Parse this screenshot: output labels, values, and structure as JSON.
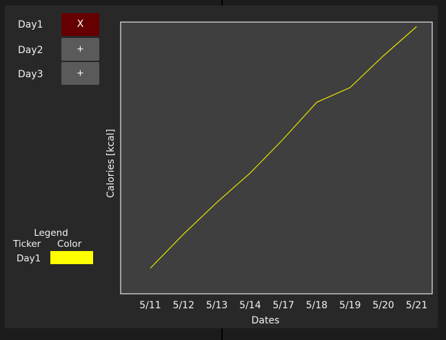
{
  "days": [
    {
      "label": "Day1",
      "button": "X",
      "state": "active"
    },
    {
      "label": "Day2",
      "button": "+",
      "state": "inactive"
    },
    {
      "label": "Day3",
      "button": "+",
      "state": "inactive"
    }
  ],
  "legend": {
    "title": "Legend",
    "col_ticker": "Ticker",
    "col_color": "Color",
    "entries": [
      {
        "ticker": "Day1",
        "color": "#ffff00"
      }
    ]
  },
  "colors": {
    "active_button": "#660000",
    "inactive_button": "#5a5a5a",
    "plot_background": "#3f3f3f",
    "series_line": "#e6e600"
  },
  "chart_data": {
    "type": "line",
    "title": "",
    "xlabel": "Dates",
    "ylabel": "Calories [kcal]",
    "x": [
      "5/11",
      "5/12",
      "5/13",
      "5/14",
      "5/17",
      "5/18",
      "5/19",
      "5/20",
      "5/21"
    ],
    "series": [
      {
        "name": "Day1",
        "color": "#e6e600",
        "values": [
          0.0,
          0.14,
          0.27,
          0.39,
          0.53,
          0.68,
          0.74,
          0.87,
          0.99
        ]
      }
    ],
    "ylim": [
      0,
      1
    ],
    "grid": false,
    "y_tick_labels_shown": false,
    "legend_placement": "left"
  }
}
